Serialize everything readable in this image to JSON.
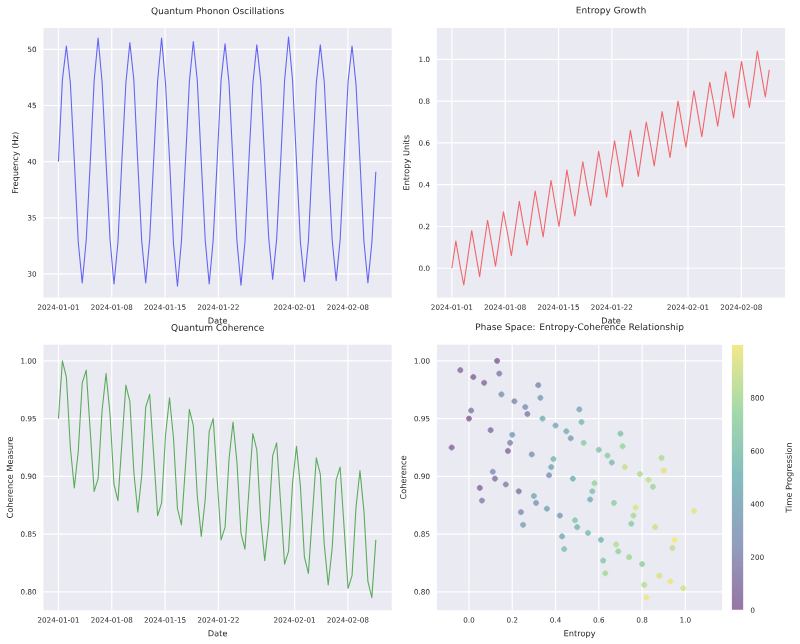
{
  "chart_data": [
    {
      "type": "line",
      "title": "Quantum Phonon Oscillations",
      "xlabel": "Date",
      "ylabel": "Frequency (Hz)",
      "color": "#6464f4",
      "grid": true,
      "xlim": [
        "2023-12-30T01:00",
        "2024-02-13T18:00"
      ],
      "xticks": [
        "2024-01-01",
        "2024-01-08",
        "2024-01-15",
        "2024-01-22",
        "2024-02-01",
        "2024-02-08"
      ],
      "ylim": [
        27.9,
        51.9
      ],
      "yticks": [
        30,
        35,
        40,
        45,
        50
      ],
      "x": [
        "2024-01-01T00:00",
        "2024-01-01T12:30",
        "2024-01-02T01:00",
        "2024-01-02T13:30",
        "2024-01-03T02:00",
        "2024-01-03T14:30",
        "2024-01-04T03:00",
        "2024-01-04T15:30",
        "2024-01-05T04:00",
        "2024-01-05T16:30",
        "2024-01-06T05:00",
        "2024-01-06T17:30",
        "2024-01-07T06:00",
        "2024-01-07T18:30",
        "2024-01-08T07:00",
        "2024-01-08T19:30",
        "2024-01-09T08:00",
        "2024-01-09T20:30",
        "2024-01-10T09:00",
        "2024-01-10T21:30",
        "2024-01-11T10:00",
        "2024-01-11T22:30",
        "2024-01-12T11:00",
        "2024-01-12T23:30",
        "2024-01-13T12:00",
        "2024-01-14T00:30",
        "2024-01-14T13:00",
        "2024-01-15T01:30",
        "2024-01-15T14:00",
        "2024-01-16T02:30",
        "2024-01-16T15:00",
        "2024-01-17T03:30",
        "2024-01-17T16:00",
        "2024-01-18T04:30",
        "2024-01-18T17:00",
        "2024-01-19T05:30",
        "2024-01-19T18:00",
        "2024-01-20T06:30",
        "2024-01-20T19:00",
        "2024-01-21T07:30",
        "2024-01-21T20:00",
        "2024-01-22T08:30",
        "2024-01-22T21:00",
        "2024-01-23T09:30",
        "2024-01-23T22:00",
        "2024-01-24T10:30",
        "2024-01-24T23:00",
        "2024-01-25T11:30",
        "2024-01-26T00:00",
        "2024-01-26T12:30",
        "2024-01-27T01:00",
        "2024-01-27T13:30",
        "2024-01-28T02:00",
        "2024-01-28T14:30",
        "2024-01-29T03:00",
        "2024-01-29T15:30",
        "2024-01-30T04:00",
        "2024-01-30T16:30",
        "2024-01-31T05:00",
        "2024-01-31T17:30",
        "2024-02-01T06:00",
        "2024-02-01T18:30",
        "2024-02-02T07:00",
        "2024-02-02T19:30",
        "2024-02-03T08:00",
        "2024-02-03T20:30",
        "2024-02-04T09:00",
        "2024-02-04T21:30",
        "2024-02-05T10:00",
        "2024-02-05T22:30",
        "2024-02-06T11:00",
        "2024-02-06T23:30",
        "2024-02-07T12:00",
        "2024-02-08T00:30",
        "2024-02-08T13:00",
        "2024-02-09T01:30",
        "2024-02-09T14:00",
        "2024-02-10T02:30",
        "2024-02-10T15:00",
        "2024-02-11T03:30",
        "2024-02-11T16:00"
      ],
      "values": [
        40.0,
        47.3,
        50.3,
        47.0,
        40.1,
        32.8,
        29.2,
        33.0,
        39.8,
        47.2,
        51.0,
        47.1,
        40.0,
        33.1,
        29.1,
        32.8,
        40.2,
        47.0,
        50.6,
        47.3,
        39.9,
        32.9,
        29.2,
        33.1,
        40.1,
        47.2,
        51.0,
        46.9,
        40.2,
        32.7,
        28.9,
        32.9,
        39.9,
        47.1,
        50.7,
        47.2,
        40.0,
        33.0,
        29.1,
        33.0,
        40.0,
        47.3,
        50.5,
        47.0,
        39.8,
        32.9,
        29.0,
        32.8,
        40.1,
        46.9,
        50.4,
        47.1,
        40.1,
        33.2,
        29.5,
        33.1,
        39.9,
        47.2,
        51.1,
        47.3,
        40.0,
        32.8,
        29.3,
        32.9,
        40.2,
        47.0,
        50.4,
        47.1,
        39.9,
        33.0,
        29.4,
        33.0,
        40.0,
        47.1,
        50.3,
        46.9,
        40.1,
        32.9,
        29.2,
        32.8,
        39.1
      ]
    },
    {
      "type": "line",
      "title": "Entropy Growth",
      "xlabel": "Date",
      "ylabel": "Entropy Units",
      "color": "#f2646a",
      "grid": true,
      "xlim": [
        "2023-12-30T01:00",
        "2024-02-13T18:00"
      ],
      "xticks": [
        "2024-01-01",
        "2024-01-08",
        "2024-01-15",
        "2024-01-22",
        "2024-02-01",
        "2024-02-08"
      ],
      "ylim": [
        -0.14,
        1.15
      ],
      "yticks": [
        {
          "value": 0,
          "label": "0.0"
        },
        {
          "value": 0.2,
          "label": "0.2"
        },
        {
          "value": 0.4,
          "label": "0.4"
        },
        {
          "value": 0.6,
          "label": "0.6"
        },
        {
          "value": 0.8,
          "label": "0.8"
        },
        {
          "value": 1,
          "label": "1.0"
        }
      ],
      "x": [
        "2024-01-01T00:00",
        "2024-01-01T12:30",
        "2024-01-02T01:00",
        "2024-01-02T13:30",
        "2024-01-03T02:00",
        "2024-01-03T14:30",
        "2024-01-04T03:00",
        "2024-01-04T15:30",
        "2024-01-05T04:00",
        "2024-01-05T16:30",
        "2024-01-06T05:00",
        "2024-01-06T17:30",
        "2024-01-07T06:00",
        "2024-01-07T18:30",
        "2024-01-08T07:00",
        "2024-01-08T19:30",
        "2024-01-09T08:00",
        "2024-01-09T20:30",
        "2024-01-10T09:00",
        "2024-01-10T21:30",
        "2024-01-11T10:00",
        "2024-01-11T22:30",
        "2024-01-12T11:00",
        "2024-01-12T23:30",
        "2024-01-13T12:00",
        "2024-01-14T00:30",
        "2024-01-14T13:00",
        "2024-01-15T01:30",
        "2024-01-15T14:00",
        "2024-01-16T02:30",
        "2024-01-16T15:00",
        "2024-01-17T03:30",
        "2024-01-17T16:00",
        "2024-01-18T04:30",
        "2024-01-18T17:00",
        "2024-01-19T05:30",
        "2024-01-19T18:00",
        "2024-01-20T06:30",
        "2024-01-20T19:00",
        "2024-01-21T07:30",
        "2024-01-21T20:00",
        "2024-01-22T08:30",
        "2024-01-22T21:00",
        "2024-01-23T09:30",
        "2024-01-23T22:00",
        "2024-01-24T10:30",
        "2024-01-24T23:00",
        "2024-01-25T11:30",
        "2024-01-26T00:00",
        "2024-01-26T12:30",
        "2024-01-27T01:00",
        "2024-01-27T13:30",
        "2024-01-28T02:00",
        "2024-01-28T14:30",
        "2024-01-29T03:00",
        "2024-01-29T15:30",
        "2024-01-30T04:00",
        "2024-01-30T16:30",
        "2024-01-31T05:00",
        "2024-01-31T17:30",
        "2024-02-01T06:00",
        "2024-02-01T18:30",
        "2024-02-02T07:00",
        "2024-02-02T19:30",
        "2024-02-03T08:00",
        "2024-02-03T20:30",
        "2024-02-04T09:00",
        "2024-02-04T21:30",
        "2024-02-05T10:00",
        "2024-02-05T22:30",
        "2024-02-06T11:00",
        "2024-02-06T23:30",
        "2024-02-07T12:00",
        "2024-02-08T00:30",
        "2024-02-08T13:00",
        "2024-02-09T01:30",
        "2024-02-09T14:00",
        "2024-02-10T02:30",
        "2024-02-10T15:00",
        "2024-02-11T03:30",
        "2024-02-11T16:00"
      ],
      "values": [
        0.0,
        0.13,
        0.02,
        -0.08,
        0.05,
        0.18,
        0.07,
        -0.04,
        0.1,
        0.23,
        0.12,
        0.01,
        0.14,
        0.27,
        0.17,
        0.06,
        0.19,
        0.32,
        0.21,
        0.11,
        0.24,
        0.37,
        0.26,
        0.15,
        0.29,
        0.42,
        0.31,
        0.2,
        0.33,
        0.47,
        0.36,
        0.25,
        0.38,
        0.51,
        0.4,
        0.3,
        0.43,
        0.56,
        0.45,
        0.34,
        0.48,
        0.61,
        0.5,
        0.39,
        0.52,
        0.66,
        0.55,
        0.44,
        0.57,
        0.7,
        0.6,
        0.49,
        0.62,
        0.75,
        0.64,
        0.53,
        0.67,
        0.8,
        0.69,
        0.58,
        0.71,
        0.85,
        0.74,
        0.63,
        0.76,
        0.89,
        0.79,
        0.68,
        0.81,
        0.94,
        0.83,
        0.72,
        0.86,
        0.99,
        0.88,
        0.77,
        0.9,
        1.04,
        0.93,
        0.82,
        0.95
      ]
    },
    {
      "type": "line",
      "title": "Quantum Coherence",
      "xlabel": "Date",
      "ylabel": "Coherence Measure",
      "color": "#5aab5a",
      "grid": true,
      "xlim": [
        "2023-12-30T01:00",
        "2024-02-13T18:00"
      ],
      "xticks": [
        "2024-01-01",
        "2024-01-08",
        "2024-01-15",
        "2024-01-22",
        "2024-02-01",
        "2024-02-08"
      ],
      "ylim": [
        0.784,
        1.014
      ],
      "yticks": [
        {
          "value": 0.8,
          "label": "0.80"
        },
        {
          "value": 0.85,
          "label": "0.85"
        },
        {
          "value": 0.9,
          "label": "0.90"
        },
        {
          "value": 0.95,
          "label": "0.95"
        },
        {
          "value": 1,
          "label": "1.00"
        }
      ],
      "x": [
        "2024-01-01T00:00",
        "2024-01-01T12:30",
        "2024-01-02T01:00",
        "2024-01-02T13:30",
        "2024-01-03T02:00",
        "2024-01-03T14:30",
        "2024-01-04T03:00",
        "2024-01-04T15:30",
        "2024-01-05T04:00",
        "2024-01-05T16:30",
        "2024-01-06T05:00",
        "2024-01-06T17:30",
        "2024-01-07T06:00",
        "2024-01-07T18:30",
        "2024-01-08T07:00",
        "2024-01-08T19:30",
        "2024-01-09T08:00",
        "2024-01-09T20:30",
        "2024-01-10T09:00",
        "2024-01-10T21:30",
        "2024-01-11T10:00",
        "2024-01-11T22:30",
        "2024-01-12T11:00",
        "2024-01-12T23:30",
        "2024-01-13T12:00",
        "2024-01-14T00:30",
        "2024-01-14T13:00",
        "2024-01-15T01:30",
        "2024-01-15T14:00",
        "2024-01-16T02:30",
        "2024-01-16T15:00",
        "2024-01-17T03:30",
        "2024-01-17T16:00",
        "2024-01-18T04:30",
        "2024-01-18T17:00",
        "2024-01-19T05:30",
        "2024-01-19T18:00",
        "2024-01-20T06:30",
        "2024-01-20T19:00",
        "2024-01-21T07:30",
        "2024-01-21T20:00",
        "2024-01-22T08:30",
        "2024-01-22T21:00",
        "2024-01-23T09:30",
        "2024-01-23T22:00",
        "2024-01-24T10:30",
        "2024-01-24T23:00",
        "2024-01-25T11:30",
        "2024-01-26T00:00",
        "2024-01-26T12:30",
        "2024-01-27T01:00",
        "2024-01-27T13:30",
        "2024-01-28T02:00",
        "2024-01-28T14:30",
        "2024-01-29T03:00",
        "2024-01-29T15:30",
        "2024-01-30T04:00",
        "2024-01-30T16:30",
        "2024-01-31T05:00",
        "2024-01-31T17:30",
        "2024-02-01T06:00",
        "2024-02-01T18:30",
        "2024-02-02T07:00",
        "2024-02-02T19:30",
        "2024-02-03T08:00",
        "2024-02-03T20:30",
        "2024-02-04T09:00",
        "2024-02-04T21:30",
        "2024-02-05T10:00",
        "2024-02-05T22:30",
        "2024-02-06T11:00",
        "2024-02-06T23:30",
        "2024-02-07T12:00",
        "2024-02-08T00:30",
        "2024-02-08T13:00",
        "2024-02-09T01:30",
        "2024-02-09T14:00",
        "2024-02-10T02:30",
        "2024-02-10T15:00",
        "2024-02-11T03:30",
        "2024-02-11T16:00"
      ],
      "values": [
        0.95,
        1.0,
        0.986,
        0.925,
        0.89,
        0.922,
        0.981,
        0.992,
        0.94,
        0.887,
        0.898,
        0.957,
        0.989,
        0.954,
        0.893,
        0.879,
        0.929,
        0.979,
        0.965,
        0.904,
        0.869,
        0.901,
        0.96,
        0.971,
        0.919,
        0.866,
        0.877,
        0.936,
        0.968,
        0.933,
        0.872,
        0.858,
        0.908,
        0.958,
        0.944,
        0.883,
        0.848,
        0.88,
        0.939,
        0.95,
        0.898,
        0.845,
        0.856,
        0.915,
        0.947,
        0.912,
        0.851,
        0.837,
        0.887,
        0.937,
        0.923,
        0.862,
        0.827,
        0.859,
        0.918,
        0.929,
        0.877,
        0.824,
        0.835,
        0.894,
        0.926,
        0.891,
        0.83,
        0.816,
        0.866,
        0.916,
        0.902,
        0.841,
        0.806,
        0.838,
        0.897,
        0.908,
        0.856,
        0.803,
        0.814,
        0.873,
        0.905,
        0.87,
        0.809,
        0.795,
        0.845
      ]
    },
    {
      "type": "scatter",
      "title": "Phase Space: Entropy-Coherence Relationship",
      "xlabel": "Entropy",
      "ylabel": "Coherence",
      "clabel": "Time Progression",
      "grid": true,
      "marker": "circle",
      "xlim": [
        -0.148,
        1.17
      ],
      "xticks": [
        {
          "value": 0,
          "label": "0.0"
        },
        {
          "value": 0.2,
          "label": "0.2"
        },
        {
          "value": 0.4,
          "label": "0.4"
        },
        {
          "value": 0.6,
          "label": "0.6"
        },
        {
          "value": 0.8,
          "label": "0.8"
        },
        {
          "value": 1,
          "label": "1.0"
        }
      ],
      "ylim": [
        0.784,
        1.014
      ],
      "yticks": [
        {
          "value": 0.8,
          "label": "0.80"
        },
        {
          "value": 0.85,
          "label": "0.85"
        },
        {
          "value": 0.9,
          "label": "0.90"
        },
        {
          "value": 0.95,
          "label": "0.95"
        },
        {
          "value": 1,
          "label": "1.00"
        }
      ],
      "clim": [
        0,
        1000
      ],
      "cticks": [
        0,
        200,
        400,
        600,
        800
      ],
      "x": [
        0.0,
        0.13,
        0.02,
        -0.08,
        0.05,
        0.18,
        0.07,
        -0.04,
        0.1,
        0.23,
        0.12,
        0.01,
        0.14,
        0.27,
        0.17,
        0.06,
        0.19,
        0.32,
        0.21,
        0.11,
        0.24,
        0.37,
        0.26,
        0.15,
        0.29,
        0.42,
        0.31,
        0.2,
        0.33,
        0.47,
        0.36,
        0.25,
        0.38,
        0.51,
        0.4,
        0.3,
        0.43,
        0.56,
        0.45,
        0.34,
        0.48,
        0.61,
        0.5,
        0.39,
        0.52,
        0.66,
        0.55,
        0.44,
        0.57,
        0.7,
        0.6,
        0.49,
        0.62,
        0.75,
        0.64,
        0.53,
        0.67,
        0.8,
        0.69,
        0.58,
        0.71,
        0.85,
        0.74,
        0.63,
        0.76,
        0.89,
        0.79,
        0.68,
        0.81,
        0.94,
        0.83,
        0.72,
        0.86,
        0.99,
        0.88,
        0.77,
        0.9,
        1.04,
        0.93,
        0.82,
        0.95
      ],
      "values": [
        0.95,
        1.0,
        0.986,
        0.925,
        0.89,
        0.922,
        0.981,
        0.992,
        0.94,
        0.887,
        0.898,
        0.957,
        0.989,
        0.954,
        0.893,
        0.879,
        0.929,
        0.979,
        0.965,
        0.904,
        0.869,
        0.901,
        0.96,
        0.971,
        0.919,
        0.866,
        0.877,
        0.936,
        0.968,
        0.933,
        0.872,
        0.858,
        0.908,
        0.958,
        0.944,
        0.883,
        0.848,
        0.88,
        0.939,
        0.95,
        0.898,
        0.845,
        0.856,
        0.915,
        0.947,
        0.912,
        0.851,
        0.837,
        0.887,
        0.937,
        0.923,
        0.862,
        0.827,
        0.859,
        0.918,
        0.929,
        0.877,
        0.824,
        0.835,
        0.894,
        0.926,
        0.891,
        0.83,
        0.816,
        0.866,
        0.916,
        0.902,
        0.841,
        0.806,
        0.838,
        0.897,
        0.908,
        0.856,
        0.803,
        0.814,
        0.873,
        0.905,
        0.87,
        0.809,
        0.795,
        0.845
      ],
      "cvalues": [
        0,
        12.5,
        25,
        37.5,
        50,
        62.5,
        75,
        87.5,
        100,
        112.5,
        125,
        137.5,
        150,
        162.5,
        175,
        187.5,
        200,
        212.5,
        225,
        237.5,
        250,
        262.5,
        275,
        287.5,
        300,
        312.5,
        325,
        337.5,
        350,
        362.5,
        375,
        387.5,
        400,
        412.5,
        425,
        437.5,
        450,
        462.5,
        475,
        487.5,
        500,
        512.5,
        525,
        537.5,
        550,
        562.5,
        575,
        587.5,
        600,
        612.5,
        625,
        637.5,
        650,
        662.5,
        675,
        687.5,
        700,
        712.5,
        725,
        737.5,
        750,
        762.5,
        775,
        787.5,
        800,
        812.5,
        825,
        837.5,
        850,
        862.5,
        875,
        887.5,
        900,
        912.5,
        925,
        937.5,
        950,
        962.5,
        975,
        987.5,
        1000
      ]
    }
  ]
}
